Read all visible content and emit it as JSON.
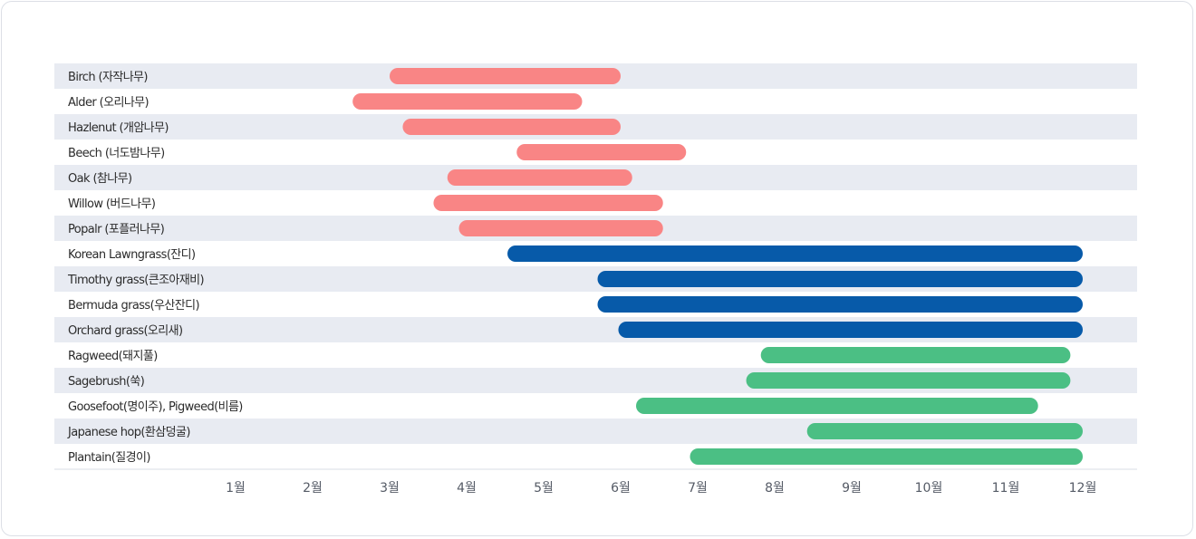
{
  "chart_data": {
    "type": "gantt",
    "x_unit": "month",
    "xlim": [
      0,
      12
    ],
    "x_ticks": [
      "1월",
      "2월",
      "3월",
      "4월",
      "5월",
      "6월",
      "7월",
      "8월",
      "9월",
      "10월",
      "11월",
      "12월"
    ],
    "colors": {
      "tree": "#f98585",
      "grass": "#075aa9",
      "weed": "#4bbf84"
    },
    "rows": [
      {
        "label": "Birch (자작나무)",
        "start": 3.0,
        "end": 6.0,
        "group": "tree"
      },
      {
        "label": "Alder (오리나무)",
        "start": 2.52,
        "end": 5.5,
        "group": "tree"
      },
      {
        "label": "Hazlenut (개암나무)",
        "start": 3.17,
        "end": 6.0,
        "group": "tree"
      },
      {
        "label": "Beech (너도밤나무)",
        "start": 4.65,
        "end": 6.85,
        "group": "tree"
      },
      {
        "label": "Oak (참나무)",
        "start": 3.75,
        "end": 6.15,
        "group": "tree"
      },
      {
        "label": "Willow (버드나무)",
        "start": 3.57,
        "end": 6.55,
        "group": "tree"
      },
      {
        "label": "Popalr (포플러나무)",
        "start": 3.9,
        "end": 6.55,
        "group": "tree"
      },
      {
        "label": "Korean Lawngrass(잔디)",
        "start": 4.53,
        "end": 12.0,
        "group": "grass"
      },
      {
        "label": "Timothy grass(큰조아재비)",
        "start": 5.7,
        "end": 12.0,
        "group": "grass"
      },
      {
        "label": "Bermuda grass(우산잔디)",
        "start": 5.7,
        "end": 12.0,
        "group": "grass"
      },
      {
        "label": "Orchard grass(오리새)",
        "start": 5.97,
        "end": 12.0,
        "group": "grass"
      },
      {
        "label": "Ragweed(돼지풀)",
        "start": 7.82,
        "end": 11.84,
        "group": "weed"
      },
      {
        "label": "Sagebrush(쑥)",
        "start": 7.63,
        "end": 11.84,
        "group": "weed"
      },
      {
        "label": "Goosefoot(명이주), Pigweed(비름)",
        "start": 6.2,
        "end": 11.42,
        "group": "weed"
      },
      {
        "label": "Japanese hop(환삼덩굴)",
        "start": 8.42,
        "end": 12.0,
        "group": "weed"
      },
      {
        "label": "Plantain(질경이)",
        "start": 6.9,
        "end": 12.0,
        "group": "weed"
      }
    ]
  }
}
